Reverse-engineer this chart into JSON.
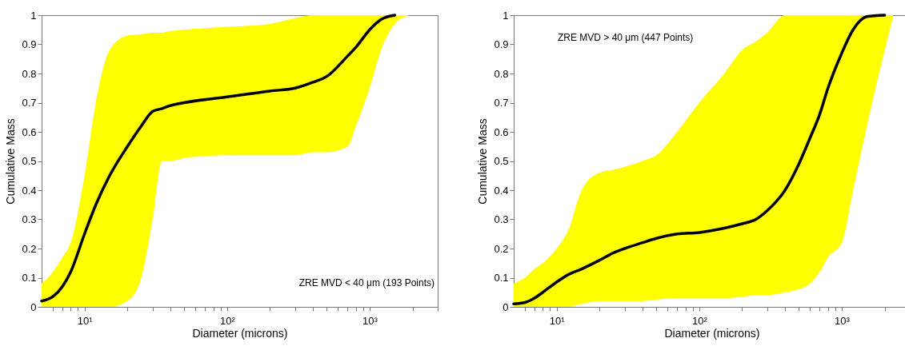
{
  "chart_data": [
    {
      "type": "line",
      "xlabel": "Diameter (microns)",
      "ylabel": "Cumulative Mass",
      "log": "x",
      "grid": false,
      "xlim": [
        5,
        3000
      ],
      "ylim": [
        0,
        1
      ],
      "xticks": [
        {
          "value": 6,
          "label": null
        },
        {
          "value": 7,
          "label": null
        },
        {
          "value": 8,
          "label": null
        },
        {
          "value": 9,
          "label": null
        },
        {
          "value": 10,
          "label": "10¹"
        },
        {
          "value": 20,
          "label": null
        },
        {
          "value": 30,
          "label": null
        },
        {
          "value": 40,
          "label": null
        },
        {
          "value": 50,
          "label": null
        },
        {
          "value": 60,
          "label": null
        },
        {
          "value": 70,
          "label": null
        },
        {
          "value": 80,
          "label": null
        },
        {
          "value": 90,
          "label": null
        },
        {
          "value": 100,
          "label": "10²"
        },
        {
          "value": 200,
          "label": null
        },
        {
          "value": 300,
          "label": null
        },
        {
          "value": 400,
          "label": null
        },
        {
          "value": 500,
          "label": null
        },
        {
          "value": 600,
          "label": null
        },
        {
          "value": 700,
          "label": null
        },
        {
          "value": 800,
          "label": null
        },
        {
          "value": 900,
          "label": null
        },
        {
          "value": 1000,
          "label": "10³"
        },
        {
          "value": 2000,
          "label": null
        },
        {
          "value": 3000,
          "label": null
        }
      ],
      "yticks": [
        0,
        0.1,
        0.2,
        0.3,
        0.4,
        0.5,
        0.6,
        0.7,
        0.8,
        0.9,
        1
      ],
      "x": [
        5,
        6,
        7,
        8,
        10,
        12,
        15,
        20,
        25,
        30,
        35,
        40,
        50,
        100,
        200,
        300,
        400,
        500,
        700,
        800,
        1000,
        1200,
        1500,
        1900
      ],
      "series": [
        {
          "color": "#000000",
          "values": [
            0.02,
            0.035,
            0.07,
            0.12,
            0.25,
            0.35,
            0.45,
            0.55,
            0.62,
            0.67,
            0.68,
            0.69,
            0.7,
            0.72,
            0.74,
            0.75,
            0.77,
            0.79,
            0.86,
            0.89,
            0.95,
            0.985,
            1,
            null
          ],
          "lower": [
            0,
            0,
            0,
            0,
            0,
            0,
            0,
            0.02,
            0.1,
            0.3,
            0.5,
            0.5,
            0.51,
            0.52,
            0.52,
            0.52,
            0.53,
            0.53,
            0.55,
            0.62,
            0.75,
            0.88,
            0.97,
            1
          ],
          "upper": [
            0.08,
            0.12,
            0.17,
            0.22,
            0.45,
            0.7,
            0.88,
            0.93,
            0.935,
            0.94,
            0.94,
            0.945,
            0.95,
            0.96,
            0.97,
            0.99,
            1,
            1,
            1,
            1,
            1,
            1,
            1,
            1
          ]
        }
      ],
      "annotations": [
        "ZRE MVD < 40 μm (193 Points)"
      ]
    },
    {
      "type": "line",
      "xlabel": "Diameter (microns)",
      "ylabel": "Cumulative Mass",
      "log": "x",
      "grid": false,
      "xlim": [
        5,
        3000
      ],
      "ylim": [
        0,
        1
      ],
      "xticks": [
        {
          "value": 6,
          "label": null
        },
        {
          "value": 7,
          "label": null
        },
        {
          "value": 8,
          "label": null
        },
        {
          "value": 9,
          "label": null
        },
        {
          "value": 10,
          "label": "10¹"
        },
        {
          "value": 20,
          "label": null
        },
        {
          "value": 30,
          "label": null
        },
        {
          "value": 40,
          "label": null
        },
        {
          "value": 50,
          "label": null
        },
        {
          "value": 60,
          "label": null
        },
        {
          "value": 70,
          "label": null
        },
        {
          "value": 80,
          "label": null
        },
        {
          "value": 90,
          "label": null
        },
        {
          "value": 100,
          "label": "10²"
        },
        {
          "value": 200,
          "label": null
        },
        {
          "value": 300,
          "label": null
        },
        {
          "value": 400,
          "label": null
        },
        {
          "value": 500,
          "label": null
        },
        {
          "value": 600,
          "label": null
        },
        {
          "value": 700,
          "label": null
        },
        {
          "value": 800,
          "label": null
        },
        {
          "value": 900,
          "label": null
        },
        {
          "value": 1000,
          "label": "10³"
        },
        {
          "value": 2000,
          "label": null
        },
        {
          "value": 3000,
          "label": null
        }
      ],
      "yticks": [
        0,
        0.1,
        0.2,
        0.3,
        0.4,
        0.5,
        0.6,
        0.7,
        0.8,
        0.9,
        1
      ],
      "x": [
        5,
        6,
        7,
        8,
        10,
        12,
        15,
        20,
        25,
        30,
        40,
        50,
        70,
        100,
        150,
        200,
        250,
        300,
        400,
        500,
        600,
        700,
        800,
        1000,
        1200,
        1500,
        2000,
        2300
      ],
      "series": [
        {
          "color": "#000000",
          "values": [
            0.01,
            0.015,
            0.03,
            0.05,
            0.085,
            0.11,
            0.13,
            0.16,
            0.185,
            0.2,
            0.22,
            0.235,
            0.25,
            0.255,
            0.27,
            0.285,
            0.3,
            0.33,
            0.4,
            0.49,
            0.58,
            0.66,
            0.75,
            0.87,
            0.95,
            0.995,
            1,
            null
          ],
          "lower": [
            0,
            0,
            0,
            0,
            0,
            0,
            0.01,
            0.02,
            0.02,
            0.02,
            0.02,
            0.025,
            0.03,
            0.03,
            0.03,
            0.035,
            0.04,
            0.04,
            0.05,
            0.06,
            0.08,
            0.12,
            0.17,
            0.22,
            0.4,
            0.62,
            0.88,
            1
          ],
          "upper": [
            0.08,
            0.1,
            0.13,
            0.15,
            0.2,
            0.26,
            0.4,
            0.46,
            0.47,
            0.48,
            0.5,
            0.52,
            0.6,
            0.7,
            0.8,
            0.88,
            0.91,
            0.94,
            1,
            1,
            1,
            1,
            1,
            1,
            1,
            1,
            1,
            1
          ]
        }
      ],
      "annotations": [
        "ZRE MVD > 40 μm (447 Points)"
      ]
    }
  ]
}
